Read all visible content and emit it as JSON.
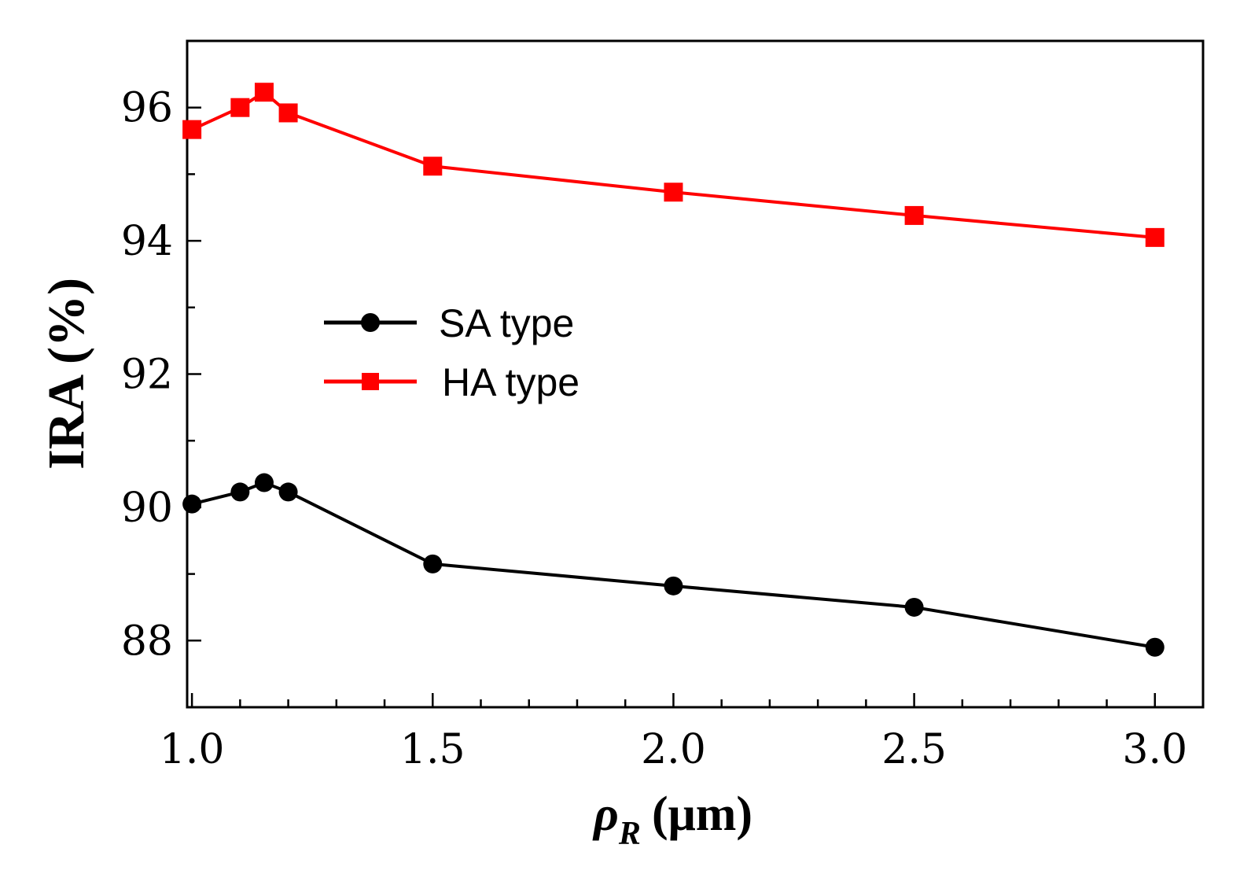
{
  "chart_data": {
    "type": "line",
    "title": "",
    "xlabel": {
      "symbol": "ρ",
      "subscript": "R",
      "unit": "(μm)"
    },
    "ylabel": "IRA (%)",
    "xlim": [
      0.99,
      3.1
    ],
    "ylim": [
      87.0,
      97.0
    ],
    "xticks": [
      1.0,
      1.5,
      2.0,
      2.5,
      3.0
    ],
    "xtick_labels": [
      "1.0",
      "1.5",
      "2.0",
      "2.5",
      "3.0"
    ],
    "xminor_step": 0.1,
    "yticks": [
      88,
      90,
      92,
      94,
      96
    ],
    "ytick_labels": [
      "88",
      "90",
      "92",
      "94",
      "96"
    ],
    "grid": false,
    "legend_position": "center-left",
    "series": [
      {
        "name": "SA type",
        "color": "#000000",
        "marker": "circle",
        "x": [
          1.0,
          1.1,
          1.15,
          1.2,
          1.5,
          2.0,
          2.5,
          3.0
        ],
        "y": [
          90.05,
          90.23,
          90.37,
          90.23,
          89.15,
          88.82,
          88.5,
          87.9
        ]
      },
      {
        "name": "HA type",
        "color": "#ff0000",
        "marker": "square",
        "x": [
          1.0,
          1.1,
          1.15,
          1.2,
          1.5,
          2.0,
          2.5,
          3.0
        ],
        "y": [
          95.67,
          96.0,
          96.23,
          95.92,
          95.12,
          94.73,
          94.38,
          94.05
        ]
      }
    ]
  }
}
